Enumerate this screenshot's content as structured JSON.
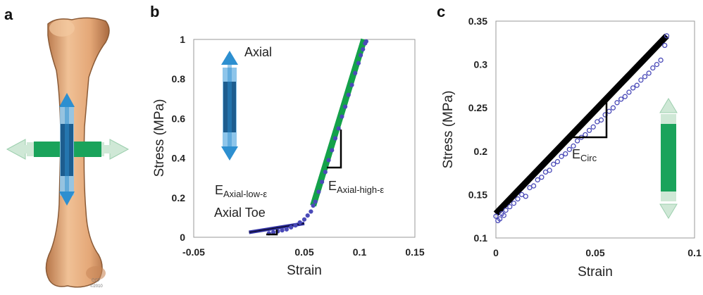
{
  "panels": {
    "a": {
      "label": "a",
      "credit": "CCF\n©2010"
    },
    "b": {
      "label": "b"
    },
    "c": {
      "label": "c"
    }
  },
  "colors": {
    "axial_dark": "#1d5d8f",
    "axial_light": "#8ec5ea",
    "axial_arrow": "#2d8fd0",
    "circ_green": "#1aa35b",
    "circ_light": "#cfe8d6",
    "fit_green": "#13a14a",
    "data_blue": "#4a4ab8",
    "bone": "#e9b07e",
    "bone_edge": "#8a5a36"
  },
  "chart_data": [
    {
      "panel": "b",
      "type": "line",
      "title": "",
      "xlabel": "Strain",
      "ylabel": "Stress (MPa)",
      "xlim": [
        -0.05,
        0.15
      ],
      "ylim": [
        0,
        1
      ],
      "xticks": [
        -0.05,
        0.05,
        0.1,
        0.15
      ],
      "xtick_labels": [
        "-0.05",
        "0.05",
        "0.1",
        "0.15"
      ],
      "yticks": [
        0,
        0.2,
        0.4,
        0.6,
        0.8,
        1
      ],
      "ytick_labels": [
        "0",
        "0.2",
        "0.4",
        "0.6",
        "0.8",
        "1"
      ],
      "series": [
        {
          "marker": "circle",
          "x": [
            0.018,
            0.022,
            0.026,
            0.03,
            0.034,
            0.038,
            0.042,
            0.046,
            0.05,
            0.053,
            0.056,
            0.058,
            0.06,
            0.063,
            0.066,
            0.069,
            0.072,
            0.075,
            0.078,
            0.081,
            0.084,
            0.087,
            0.09,
            0.093,
            0.096,
            0.099,
            0.101,
            0.103,
            0.105,
            0.106
          ],
          "y": [
            0.02,
            0.025,
            0.03,
            0.035,
            0.04,
            0.05,
            0.06,
            0.075,
            0.09,
            0.11,
            0.13,
            0.16,
            0.18,
            0.23,
            0.28,
            0.33,
            0.39,
            0.44,
            0.5,
            0.55,
            0.61,
            0.66,
            0.72,
            0.77,
            0.83,
            0.88,
            0.92,
            0.95,
            0.98,
            0.99
          ]
        },
        {
          "name": "",
          "kind": "fit",
          "x": [
            0.058,
            0.104
          ],
          "y": [
            0.16,
            1.0
          ]
        },
        {
          "name": "",
          "kind": "fit",
          "x": [
            0.0,
            0.05
          ],
          "y": [
            0.025,
            0.07
          ]
        }
      ],
      "annotations": {
        "axial_label": "Axial",
        "high_label_main": "E",
        "high_label_sub": "Axial-high-ε",
        "low_label_main": "E",
        "low_label_sub": "Axial-low-ε",
        "toe_label": "Axial Toe"
      }
    },
    {
      "panel": "c",
      "type": "scatter",
      "title": "",
      "xlabel": "Strain",
      "ylabel": "Stress (MPa)",
      "xlim": [
        0,
        0.1
      ],
      "ylim": [
        0.1,
        0.35
      ],
      "xticks": [
        0,
        0.05,
        0.1
      ],
      "xtick_labels": [
        "0",
        "0.05",
        "0.1"
      ],
      "yticks": [
        0.1,
        0.15,
        0.2,
        0.25,
        0.3,
        0.35
      ],
      "ytick_labels": [
        "0.1",
        "0.15",
        "0.2",
        "0.25",
        "0.3",
        "0.35"
      ],
      "series": [
        {
          "marker": "circle",
          "x": [
            0.0,
            0.001,
            0.002,
            0.003,
            0.004,
            0.005,
            0.007,
            0.009,
            0.011,
            0.013,
            0.015,
            0.017,
            0.019,
            0.021,
            0.023,
            0.025,
            0.027,
            0.029,
            0.031,
            0.033,
            0.035,
            0.037,
            0.039,
            0.041,
            0.043,
            0.045,
            0.047,
            0.049,
            0.051,
            0.053,
            0.055,
            0.057,
            0.059,
            0.061,
            0.063,
            0.065,
            0.067,
            0.069,
            0.071,
            0.073,
            0.075,
            0.077,
            0.079,
            0.081,
            0.083,
            0.085,
            0.086
          ],
          "y": [
            0.125,
            0.12,
            0.122,
            0.128,
            0.126,
            0.132,
            0.136,
            0.14,
            0.145,
            0.15,
            0.148,
            0.158,
            0.16,
            0.167,
            0.17,
            0.176,
            0.178,
            0.185,
            0.188,
            0.194,
            0.197,
            0.202,
            0.206,
            0.212,
            0.216,
            0.219,
            0.224,
            0.228,
            0.234,
            0.236,
            0.242,
            0.246,
            0.25,
            0.256,
            0.26,
            0.263,
            0.268,
            0.273,
            0.276,
            0.282,
            0.286,
            0.29,
            0.296,
            0.3,
            0.305,
            0.322,
            0.333
          ]
        },
        {
          "name": "",
          "kind": "fit",
          "x": [
            0.0,
            0.086
          ],
          "y": [
            0.128,
            0.333
          ]
        }
      ],
      "annotations": {
        "circ_label_main": "E",
        "circ_label_sub": "Circ"
      }
    }
  ]
}
